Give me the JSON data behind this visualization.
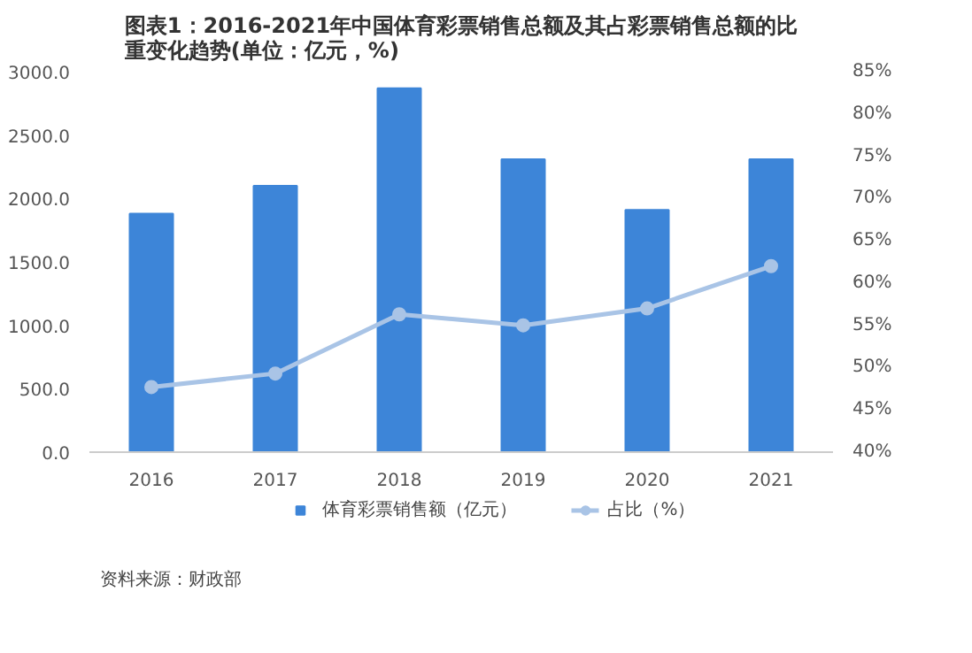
{
  "chart_data": {
    "type": "bar",
    "title": "图表1：2016-2021年中国体育彩票销售总额及其占彩票销售总额的比重变化趋势(单位：亿元，%)",
    "categories": [
      "2016",
      "2017",
      "2018",
      "2019",
      "2020",
      "2021"
    ],
    "series": [
      {
        "name": "体育彩票销售额（亿元）",
        "color": "#3d85d8",
        "values": [
          1880,
          2100,
          2870,
          2310,
          1910,
          2310
        ]
      },
      {
        "name": "占比（%）",
        "type": "line",
        "axis": "y2",
        "color": "#a9c4e6",
        "marker": "circle",
        "values": [
          47.7,
          49.3,
          56.3,
          55.0,
          57.0,
          62.0
        ]
      }
    ],
    "ylim": [
      0,
      3000
    ],
    "yticks": [
      {
        "value": 0,
        "label": "0.0"
      },
      {
        "value": 500,
        "label": "500.0"
      },
      {
        "value": 1000,
        "label": "1000.0"
      },
      {
        "value": 1500,
        "label": "1500.0"
      },
      {
        "value": 2000,
        "label": "2000.0"
      },
      {
        "value": 2500,
        "label": "2500.0"
      },
      {
        "value": 3000,
        "label": "3000.0"
      }
    ],
    "y2lim": [
      40,
      85
    ],
    "y2ticks": [
      {
        "value": 40,
        "label": "40%"
      },
      {
        "value": 45,
        "label": "45%"
      },
      {
        "value": 50,
        "label": "50%"
      },
      {
        "value": 55,
        "label": "55%"
      },
      {
        "value": 60,
        "label": "60%"
      },
      {
        "value": 65,
        "label": "65%"
      },
      {
        "value": 70,
        "label": "70%"
      },
      {
        "value": 75,
        "label": "75%"
      },
      {
        "value": 80,
        "label": "80%"
      },
      {
        "value": 85,
        "label": "85%"
      }
    ],
    "grid": false,
    "legend": "bottom",
    "annotations": [
      "资料来源：财政部"
    ]
  }
}
